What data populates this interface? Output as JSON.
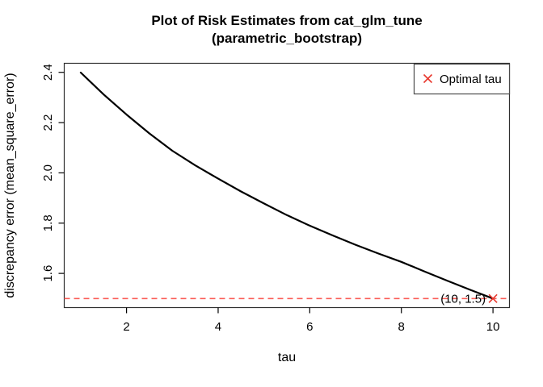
{
  "figure": {
    "background": "#ffffff",
    "title_line1": "Plot of Risk Estimates from cat_glm_tune",
    "title_line2": "(parametric_bootstrap)"
  },
  "colors": {
    "curve": "#000000",
    "box": "#2e2e2e",
    "marker_red": "#e8392f",
    "dash_red": "#fb5b55",
    "text": "#000000",
    "legend_border": "#4a4a4a"
  },
  "chart_data": {
    "type": "line",
    "title": "Plot of Risk Estimates from cat_glm_tune (parametric_bootstrap)",
    "xlabel": "tau",
    "ylabel": "discrepancy error (mean_square_error)",
    "xlim": [
      0.64,
      10.36
    ],
    "ylim": [
      1.464,
      2.436
    ],
    "grid": false,
    "x_ticks": [
      {
        "value": 2,
        "label": "2"
      },
      {
        "value": 4,
        "label": "4"
      },
      {
        "value": 6,
        "label": "6"
      },
      {
        "value": 8,
        "label": "8"
      },
      {
        "value": 10,
        "label": "10"
      }
    ],
    "y_ticks": [
      {
        "value": 1.6,
        "label": "1.6"
      },
      {
        "value": 1.8,
        "label": "1.8"
      },
      {
        "value": 2.0,
        "label": "2.0"
      },
      {
        "value": 2.2,
        "label": "2.2"
      },
      {
        "value": 2.4,
        "label": "2.4"
      }
    ],
    "series": [
      {
        "name": "risk_estimate",
        "color": "#000000",
        "x": [
          1,
          1.5,
          2,
          2.5,
          3,
          3.5,
          4,
          4.5,
          5,
          5.5,
          6,
          6.5,
          7,
          7.5,
          8,
          8.5,
          9,
          9.5,
          10
        ],
        "y": [
          2.399,
          2.312,
          2.232,
          2.157,
          2.088,
          2.03,
          1.977,
          1.926,
          1.878,
          1.832,
          1.79,
          1.751,
          1.714,
          1.679,
          1.646,
          1.608,
          1.571,
          1.535,
          1.5
        ]
      }
    ],
    "hline": {
      "y": 1.5,
      "style": "dashed",
      "color": "#fb5b55"
    },
    "optimal_point": {
      "x": 10,
      "y": 1.5,
      "marker": "x",
      "annotation": "(10, 1.5)"
    },
    "legend": {
      "position": "topright",
      "entries": [
        {
          "marker": "x",
          "marker_color": "#e8392f",
          "label": "Optimal tau"
        }
      ]
    }
  }
}
